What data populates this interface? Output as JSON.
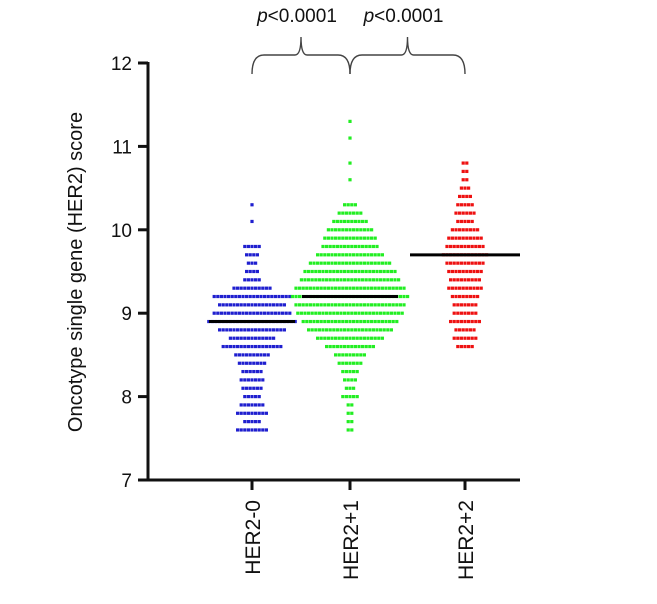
{
  "chart_data": {
    "type": "scatter",
    "subtype": "dot-plot-with-mean",
    "ylabel": "Oncotype single gene (HER2) score",
    "ylim": [
      7,
      12
    ],
    "yticks": [
      7,
      8,
      9,
      10,
      11,
      12
    ],
    "categories": [
      "HER2-0",
      "HER2+1",
      "HER2+2"
    ],
    "series": [
      {
        "name": "HER2-0",
        "color": "#1f1fcf",
        "mean": 8.9,
        "bins": [
          [
            10.3,
            1
          ],
          [
            10.1,
            1
          ],
          [
            9.8,
            5
          ],
          [
            9.7,
            4
          ],
          [
            9.6,
            3
          ],
          [
            9.5,
            4
          ],
          [
            9.4,
            5
          ],
          [
            9.3,
            11
          ],
          [
            9.2,
            22
          ],
          [
            9.1,
            19
          ],
          [
            9.0,
            22
          ],
          [
            8.9,
            25
          ],
          [
            8.8,
            19
          ],
          [
            8.7,
            13
          ],
          [
            8.6,
            17
          ],
          [
            8.5,
            10
          ],
          [
            8.4,
            8
          ],
          [
            8.3,
            6
          ],
          [
            8.2,
            7
          ],
          [
            8.1,
            6
          ],
          [
            8.0,
            5
          ],
          [
            7.9,
            7
          ],
          [
            7.8,
            9
          ],
          [
            7.7,
            5
          ],
          [
            7.6,
            9
          ]
        ]
      },
      {
        "name": "HER2+1",
        "color": "#22ee22",
        "mean": 9.2,
        "bins": [
          [
            11.3,
            1
          ],
          [
            11.1,
            1
          ],
          [
            10.8,
            1
          ],
          [
            10.6,
            1
          ],
          [
            10.3,
            4
          ],
          [
            10.2,
            7
          ],
          [
            10.1,
            10
          ],
          [
            10.0,
            13
          ],
          [
            9.9,
            15
          ],
          [
            9.8,
            16
          ],
          [
            9.7,
            19
          ],
          [
            9.6,
            23
          ],
          [
            9.5,
            26
          ],
          [
            9.4,
            28
          ],
          [
            9.3,
            31
          ],
          [
            9.2,
            33
          ],
          [
            9.1,
            31
          ],
          [
            9.0,
            30
          ],
          [
            8.9,
            27
          ],
          [
            8.8,
            24
          ],
          [
            8.7,
            19
          ],
          [
            8.6,
            14
          ],
          [
            8.5,
            9
          ],
          [
            8.4,
            7
          ],
          [
            8.3,
            5
          ],
          [
            8.2,
            4
          ],
          [
            8.1,
            3
          ],
          [
            8.0,
            5
          ],
          [
            7.9,
            2
          ],
          [
            7.8,
            2
          ],
          [
            7.7,
            2
          ],
          [
            7.6,
            2
          ]
        ]
      },
      {
        "name": "HER2+2",
        "color": "#ee1111",
        "mean": 9.7,
        "bins": [
          [
            10.8,
            2
          ],
          [
            10.7,
            2
          ],
          [
            10.6,
            2
          ],
          [
            10.5,
            3
          ],
          [
            10.4,
            4
          ],
          [
            10.3,
            5
          ],
          [
            10.2,
            6
          ],
          [
            10.1,
            5
          ],
          [
            10.0,
            8
          ],
          [
            9.9,
            10
          ],
          [
            9.8,
            11
          ],
          [
            9.7,
            13
          ],
          [
            9.6,
            11
          ],
          [
            9.5,
            10
          ],
          [
            9.4,
            9
          ],
          [
            9.3,
            10
          ],
          [
            9.2,
            8
          ],
          [
            9.1,
            7
          ],
          [
            9.0,
            7
          ],
          [
            8.9,
            9
          ],
          [
            8.8,
            6
          ],
          [
            8.7,
            7
          ],
          [
            8.6,
            5
          ]
        ]
      }
    ],
    "comparisons": [
      {
        "from": "HER2-0",
        "to": "HER2+1",
        "label": "p<0.0001"
      },
      {
        "from": "HER2+1",
        "to": "HER2+2",
        "label": "p<0.0001"
      }
    ]
  }
}
